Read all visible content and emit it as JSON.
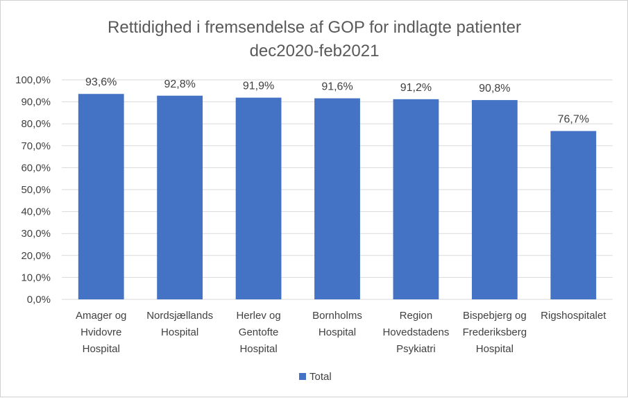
{
  "chart_data": {
    "type": "bar",
    "title_lines": [
      "Rettidighed i fremsendelse  af GOP for indlagte patienter",
      "dec2020-feb2021"
    ],
    "categories": [
      [
        "Amager og",
        "Hvidovre",
        "Hospital"
      ],
      [
        "Nordsjællands",
        "Hospital"
      ],
      [
        "Herlev og",
        "Gentofte",
        "Hospital"
      ],
      [
        "Bornholms",
        "Hospital"
      ],
      [
        "Region",
        "Hovedstadens",
        "Psykiatri"
      ],
      [
        "Bispebjerg og",
        "Frederiksberg",
        "Hospital"
      ],
      [
        "Rigshospitalet"
      ]
    ],
    "series": [
      {
        "name": "Total",
        "values": [
          93.6,
          92.8,
          91.9,
          91.6,
          91.2,
          90.8,
          76.7
        ],
        "labels": [
          "93,6%",
          "92,8%",
          "91,9%",
          "91,6%",
          "91,2%",
          "90,8%",
          "76,7%"
        ],
        "color": "#4472c4"
      }
    ],
    "ylim": [
      0,
      100
    ],
    "yticks": [
      0,
      10,
      20,
      30,
      40,
      50,
      60,
      70,
      80,
      90,
      100
    ],
    "ytick_labels": [
      "0,0%",
      "10,0%",
      "20,0%",
      "30,0%",
      "40,0%",
      "50,0%",
      "60,0%",
      "70,0%",
      "80,0%",
      "90,0%",
      "100,0%"
    ],
    "grid": true,
    "grid_color": "#d9d9d9",
    "legend": "bottom",
    "xlabel": "",
    "ylabel": ""
  }
}
